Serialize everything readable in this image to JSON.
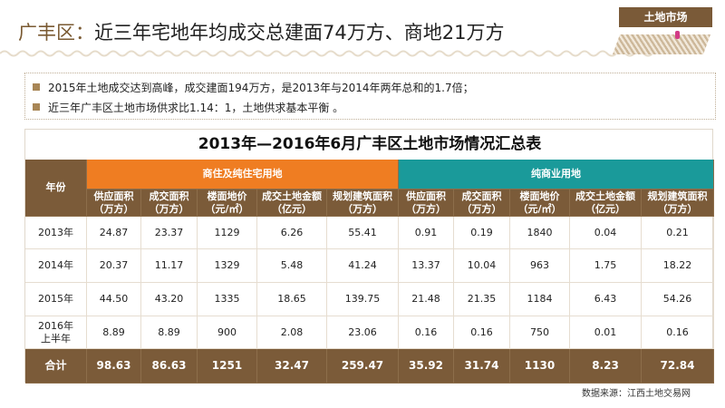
{
  "header": {
    "title_prefix": "广丰区：",
    "title_main": "近三年宅地年均成交总建面74万方、商地21万方",
    "badge": "土地市场"
  },
  "bullets": [
    "2015年土地成交达到高峰，成交建面194万方，是2013年与2014年两年总和的1.7倍；",
    "近三年广丰区土地市场供求比1.14：1，土地供求基本平衡 。"
  ],
  "table": {
    "title": "2013年—2016年6月广丰区土地市场情况汇总表",
    "year_header": "年份",
    "group_residential": "商住及纯住宅用地",
    "group_commercial": "纯商业用地",
    "columns": [
      "供应面积（万方）",
      "成交面积（万方）",
      "楼面地价（元/㎡）",
      "成交土地金额（亿元）",
      "规划建筑面积（万方）",
      "供应面积（万方）",
      "成交面积（万方）",
      "楼面地价（元/㎡）",
      "成交土地金额（亿元）",
      "规划建筑面积（万方）"
    ],
    "rows": [
      {
        "year": "2013年",
        "values": [
          "24.87",
          "23.37",
          "1129",
          "6.26",
          "55.41",
          "0.91",
          "0.19",
          "1840",
          "0.04",
          "0.21"
        ]
      },
      {
        "year": "2014年",
        "values": [
          "20.37",
          "11.17",
          "1329",
          "5.48",
          "41.24",
          "13.37",
          "10.04",
          "963",
          "1.75",
          "18.22"
        ]
      },
      {
        "year": "2015年",
        "values": [
          "44.50",
          "43.20",
          "1335",
          "18.65",
          "139.75",
          "21.48",
          "21.35",
          "1184",
          "6.43",
          "54.26"
        ]
      },
      {
        "year": "2016年上半年",
        "values": [
          "8.89",
          "8.89",
          "900",
          "2.08",
          "23.06",
          "0.16",
          "0.16",
          "750",
          "0.01",
          "0.16"
        ]
      }
    ],
    "total": {
      "year": "合计",
      "values": [
        "98.63",
        "86.63",
        "1251",
        "32.47",
        "259.47",
        "35.92",
        "31.74",
        "1130",
        "8.23",
        "72.84"
      ]
    }
  },
  "source": "数据来源：江西土地交易网",
  "colors": {
    "brown": "#7b5b39",
    "orange": "#ef7d22",
    "teal": "#1a9a9a"
  }
}
